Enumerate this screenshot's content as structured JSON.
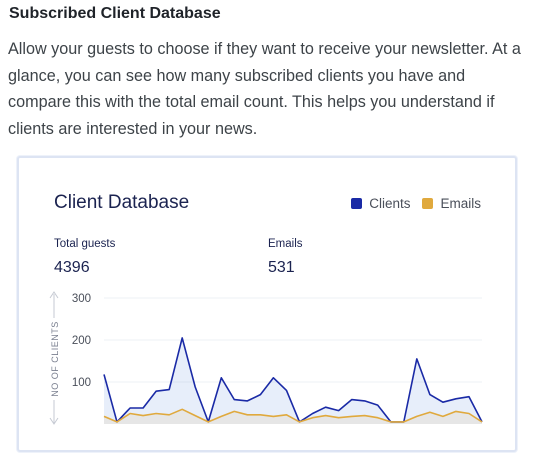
{
  "section": {
    "heading": "Subscribed Client Database",
    "description": "Allow your guests to choose if they want to receive your newsletter. At a glance, you can see how many subscribed clients you have and compare this with the total email count. This helps you understand if clients are interested in your news."
  },
  "card": {
    "title": "Client Database",
    "legend": [
      {
        "label": "Clients",
        "color": "#1a2aa6"
      },
      {
        "label": "Emails",
        "color": "#e0a93d"
      }
    ],
    "stats": [
      {
        "label": "Total guests",
        "value": "4396"
      },
      {
        "label": "Emails",
        "value": "531"
      }
    ]
  },
  "chart_data": {
    "type": "area",
    "title": "Client Database",
    "ylabel": "NO OF CLIENTS",
    "xlabel": "",
    "yticks": [
      "300",
      "200",
      "100"
    ],
    "ylim": [
      0,
      300
    ],
    "grid": true,
    "legend_position": "top-right",
    "series": [
      {
        "name": "Clients",
        "color": "#1a2aa6",
        "values": [
          118,
          5,
          38,
          38,
          78,
          82,
          205,
          88,
          5,
          110,
          58,
          55,
          70,
          110,
          80,
          5,
          25,
          40,
          32,
          58,
          55,
          45,
          5,
          5,
          155,
          70,
          52,
          60,
          65,
          5
        ]
      },
      {
        "name": "Emails",
        "color": "#e0a93d",
        "values": [
          18,
          5,
          25,
          20,
          25,
          22,
          35,
          20,
          5,
          18,
          30,
          22,
          22,
          18,
          22,
          5,
          15,
          20,
          15,
          18,
          20,
          15,
          5,
          5,
          18,
          28,
          18,
          30,
          25,
          5
        ]
      }
    ]
  }
}
